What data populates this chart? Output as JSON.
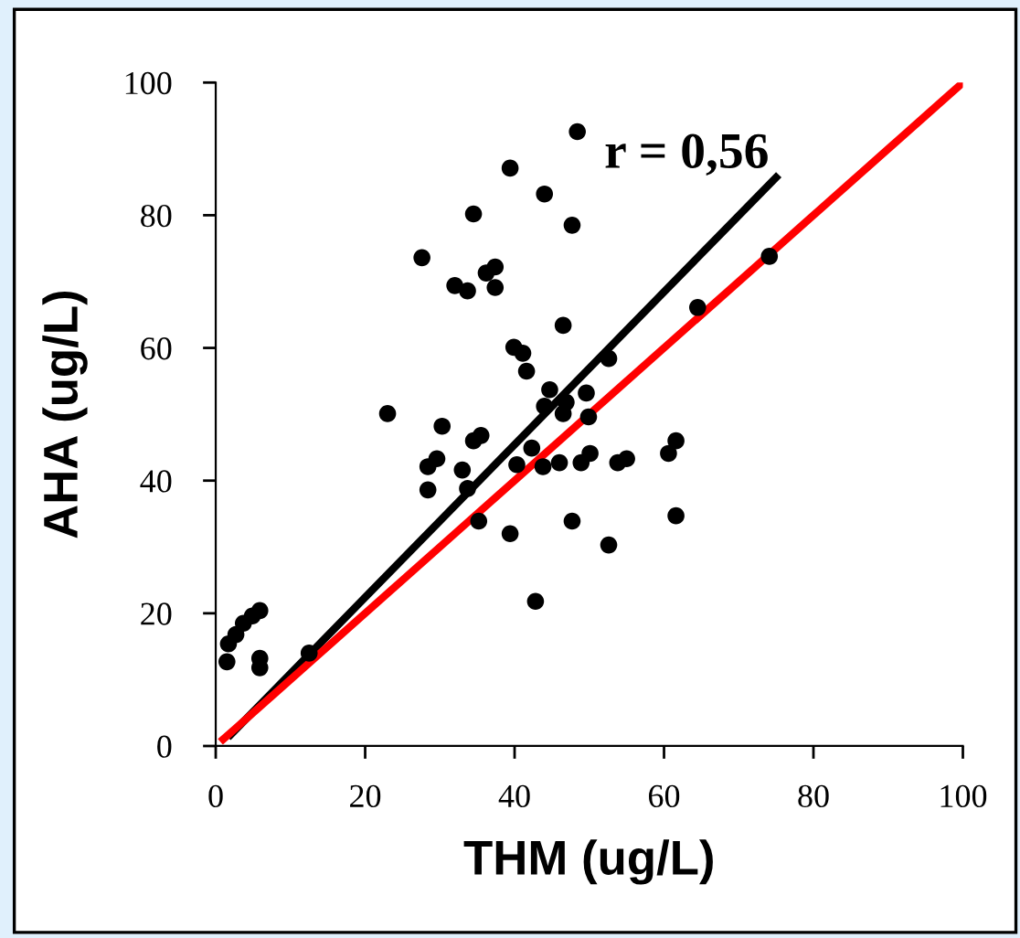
{
  "chart_data": {
    "type": "scatter",
    "xlabel": "THM (ug/L)",
    "ylabel": "AHA (ug/L)",
    "xlim": [
      0,
      100
    ],
    "ylim": [
      0,
      100
    ],
    "xticks": [
      0,
      20,
      40,
      60,
      80,
      100
    ],
    "yticks": [
      0,
      20,
      40,
      60,
      80,
      100
    ],
    "grid": false,
    "legend": false,
    "marker": "circle",
    "annotations": [
      "r = 0,56"
    ],
    "series": [
      {
        "color": "#000000",
        "x": [
          48.4,
          39.4,
          44.0,
          34.5,
          47.7,
          27.6,
          32.0,
          33.7,
          36.2,
          37.4,
          37.4,
          46.5,
          39.9,
          41.1,
          41.6,
          52.6,
          64.5,
          44.7,
          49.6,
          46.9,
          44.0,
          46.5,
          49.9,
          74.1,
          23.0,
          30.3,
          34.5,
          35.5,
          28.4,
          29.6,
          33.0,
          28.4,
          33.7,
          35.2,
          39.4,
          42.3,
          40.3,
          43.8,
          46.0,
          48.9,
          50.1,
          53.8,
          55.0,
          60.6,
          61.6,
          61.6,
          47.7,
          52.6,
          42.8,
          1.5,
          1.7,
          2.7,
          3.7,
          4.9,
          5.9,
          5.9,
          5.9,
          12.5
        ],
        "values": [
          92.6,
          87.1,
          83.2,
          80.2,
          78.5,
          73.6,
          69.4,
          68.6,
          71.3,
          72.2,
          69.1,
          63.4,
          60.1,
          59.2,
          56.5,
          58.4,
          66.1,
          53.7,
          53.2,
          51.8,
          51.2,
          50.1,
          49.6,
          73.8,
          50.1,
          48.2,
          46.0,
          46.8,
          42.1,
          43.3,
          41.6,
          38.6,
          38.8,
          33.9,
          32.0,
          44.9,
          42.4,
          42.1,
          42.7,
          42.7,
          44.1,
          42.7,
          43.3,
          44.1,
          46.0,
          34.7,
          33.9,
          30.3,
          21.8,
          12.7,
          15.4,
          16.8,
          18.5,
          19.6,
          20.4,
          13.2,
          11.8,
          14.0
        ]
      },
      {
        "type": "line",
        "color": "#000000",
        "marker": "none",
        "x": [
          2,
          75
        ],
        "values": [
          1.7,
          85.7
        ]
      },
      {
        "type": "line",
        "color": "#ff0000",
        "marker": "none",
        "x": [
          1,
          100
        ],
        "values": [
          1,
          100
        ]
      }
    ]
  }
}
